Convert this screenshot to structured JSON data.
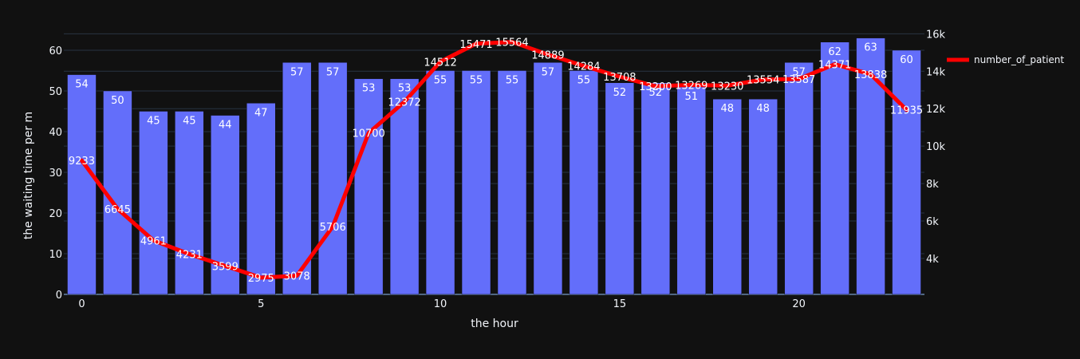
{
  "chart_data": {
    "type": "bar",
    "x": [
      0,
      1,
      2,
      3,
      4,
      5,
      6,
      7,
      8,
      9,
      10,
      11,
      12,
      13,
      14,
      15,
      16,
      17,
      18,
      19,
      20,
      21,
      22,
      23
    ],
    "x_ticks": [
      0,
      5,
      10,
      15,
      20
    ],
    "xlabel": "the hour",
    "ylabel": "the waiting time per m",
    "ylim": [
      0,
      64.5
    ],
    "y_ticks": [
      0,
      10,
      20,
      30,
      40,
      50,
      60
    ],
    "y2lim": [
      2080,
      16100
    ],
    "y2_ticks": [
      4000,
      6000,
      8000,
      10000,
      12000,
      14000,
      16000
    ],
    "y2_tick_labels": [
      "4k",
      "6k",
      "8k",
      "10k",
      "12k",
      "14k",
      "16k"
    ],
    "grid": true,
    "legend_position": "top-right",
    "series": [
      {
        "type": "bar",
        "axis": "left",
        "color": "#636efa",
        "values": [
          54,
          50,
          45,
          45,
          44,
          47,
          57,
          57,
          53,
          53,
          55,
          55,
          55,
          57,
          55,
          52,
          52,
          51,
          48,
          48,
          57,
          62,
          63,
          60
        ]
      },
      {
        "type": "line",
        "axis": "right",
        "name": "number_of_patient",
        "color": "#ff0000",
        "values": [
          9233,
          6645,
          4961,
          4231,
          3599,
          2975,
          3078,
          5706,
          10700,
          12372,
          14512,
          15471,
          15564,
          14889,
          14284,
          13708,
          13200,
          13269,
          13230,
          13554,
          13587,
          14371,
          13838,
          11935
        ]
      }
    ]
  },
  "colors": {
    "background": "#111111",
    "grid": "#283442",
    "text": "#f2f5fa",
    "bar": "#636efa",
    "line": "#ff0000"
  }
}
